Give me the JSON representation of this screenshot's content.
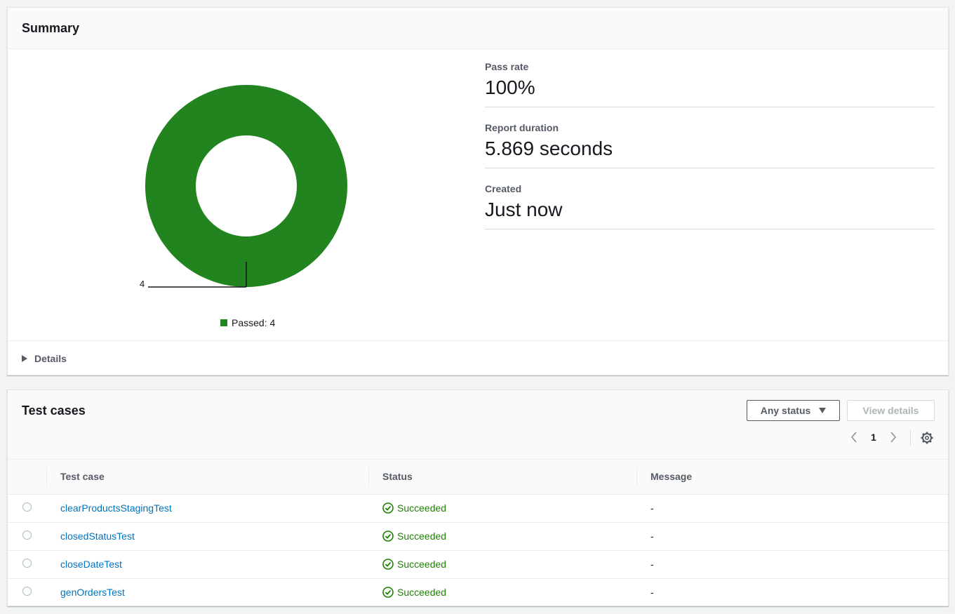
{
  "summary": {
    "title": "Summary",
    "chart_data": {
      "type": "pie",
      "variant": "donut",
      "slices": [
        {
          "label": "Passed",
          "value": 4,
          "color": "#22841f"
        }
      ],
      "data_labels": [
        "4"
      ],
      "legend": [
        "Passed: 4"
      ],
      "legend_placement": "bottom"
    },
    "metrics": [
      {
        "label": "Pass rate",
        "value": "100%"
      },
      {
        "label": "Report duration",
        "value": "5.869 seconds"
      },
      {
        "label": "Created",
        "value": "Just now"
      }
    ],
    "details_label": "Details"
  },
  "testcases": {
    "title": "Test cases",
    "filter_label": "Any status",
    "view_details_label": "View details",
    "page": "1",
    "columns": [
      "Test case",
      "Status",
      "Message"
    ],
    "rows": [
      {
        "name": "clearProductsStagingTest",
        "status": "Succeeded",
        "message": "-"
      },
      {
        "name": "closedStatusTest",
        "status": "Succeeded",
        "message": "-"
      },
      {
        "name": "closeDateTest",
        "status": "Succeeded",
        "message": "-"
      },
      {
        "name": "genOrdersTest",
        "status": "Succeeded",
        "message": "-"
      }
    ]
  },
  "colors": {
    "passed": "#22841f",
    "link": "#0073bb",
    "success_text": "#1d8102"
  }
}
